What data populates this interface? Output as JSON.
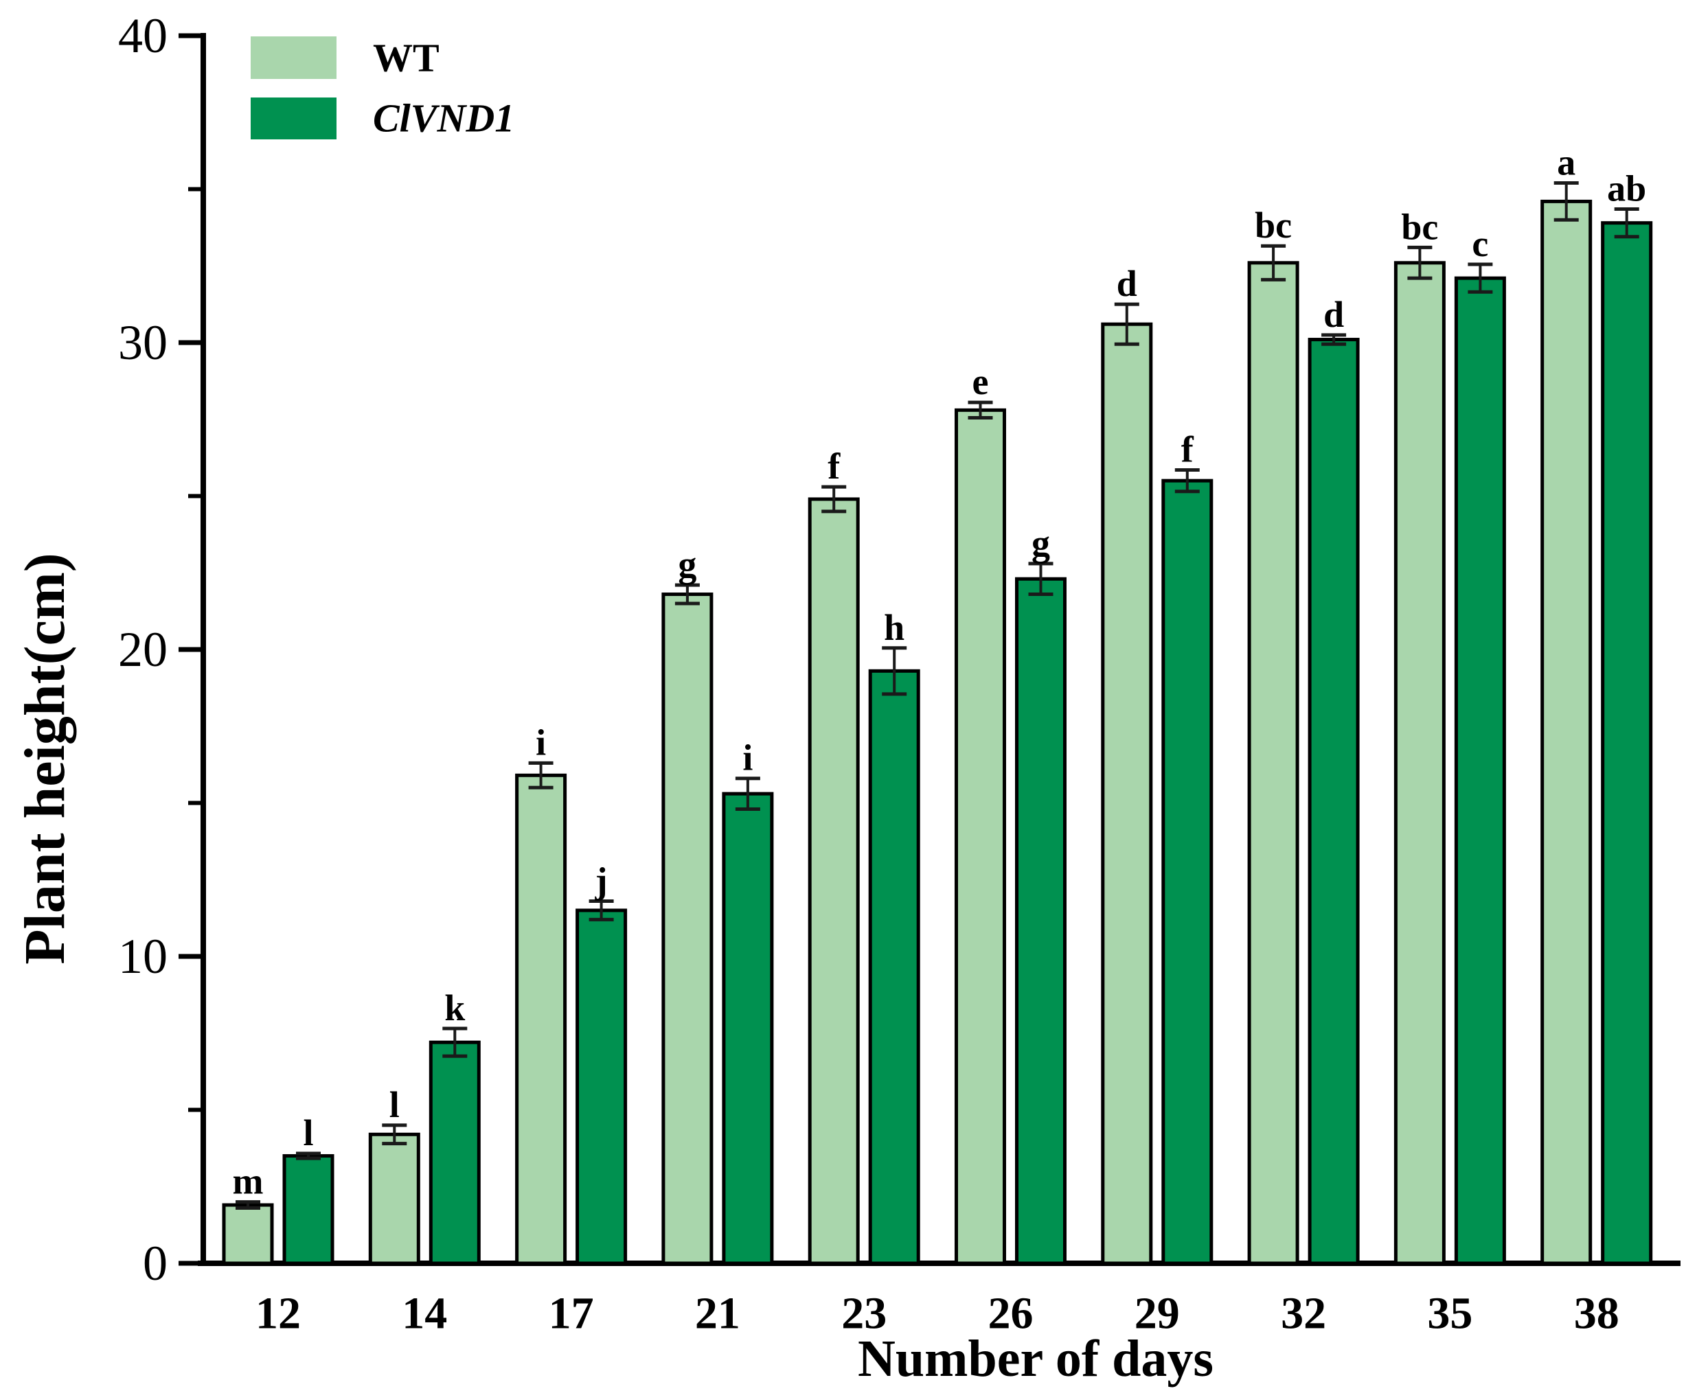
{
  "figure": {
    "y_axis_title": "Plant height(cm)",
    "x_axis_title": "Number of days"
  },
  "legend": [
    {
      "label": "WT",
      "color": "#a9d6ac",
      "italic": false
    },
    {
      "label": "ClVND1",
      "color": "#009150",
      "italic": true
    }
  ],
  "chart_data": {
    "type": "bar",
    "title": "",
    "xlabel": "Number of days",
    "ylabel": "Plant height(cm)",
    "categories": [
      "12",
      "14",
      "17",
      "21",
      "23",
      "26",
      "29",
      "32",
      "35",
      "38"
    ],
    "y_axis": {
      "min": 0,
      "max": 40,
      "major_ticks": [
        0,
        10,
        20,
        30,
        40
      ],
      "minor_ticks": [
        5,
        15,
        25,
        35
      ]
    },
    "grid": false,
    "legend_position": "top-left",
    "bar_edge_color": "#000000",
    "error_bar_color": "#1a1a1a",
    "series": [
      {
        "name": "WT",
        "color": "#a9d6ac",
        "values": [
          1.9,
          4.2,
          15.9,
          21.8,
          24.9,
          27.8,
          30.6,
          32.6,
          32.6,
          34.6
        ],
        "errors": [
          0.1,
          0.3,
          0.4,
          0.3,
          0.4,
          0.25,
          0.65,
          0.55,
          0.5,
          0.6
        ],
        "letters": [
          "m",
          "l",
          "i",
          "g",
          "f",
          "e",
          "d",
          "bc",
          "bc",
          "a"
        ]
      },
      {
        "name": "ClVND1",
        "color": "#009150",
        "values": [
          3.5,
          7.2,
          11.5,
          15.3,
          19.3,
          22.3,
          25.5,
          30.1,
          32.1,
          33.9
        ],
        "errors": [
          0.08,
          0.45,
          0.3,
          0.5,
          0.75,
          0.5,
          0.35,
          0.15,
          0.45,
          0.45
        ],
        "letters": [
          "l",
          "k",
          "j",
          "i",
          "h",
          "g",
          "f",
          "d",
          "c",
          "ab"
        ]
      }
    ]
  }
}
